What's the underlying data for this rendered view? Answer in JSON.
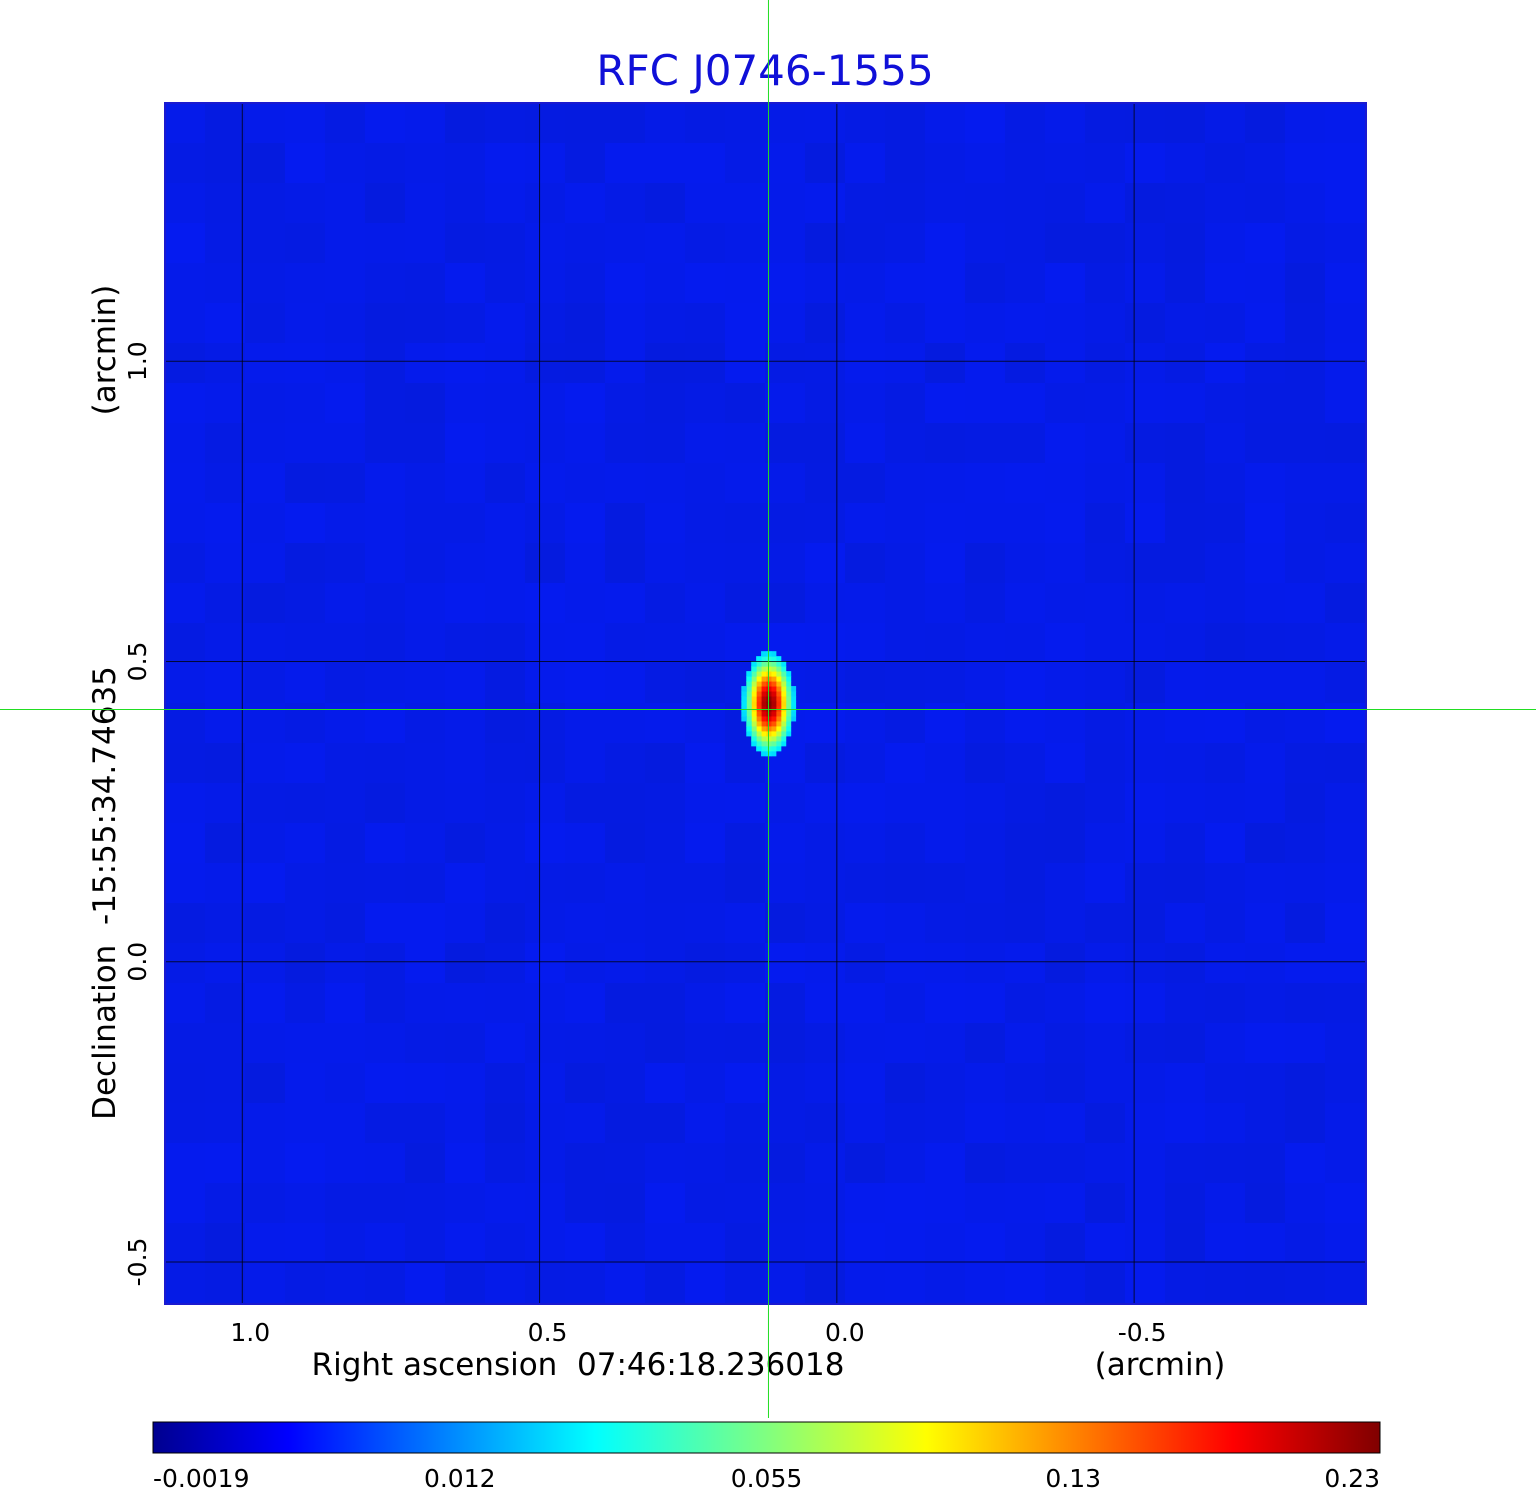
{
  "chart_data": {
    "type": "heatmap",
    "title": "RFC J0746-1555",
    "xlabel": "Right ascension  07:46:18.236018",
    "xunit": "(arcmin)",
    "ylabel": "Declination  -15:55:34.74635",
    "yunit": "(arcmin)",
    "xlim": [
      1.13,
      -0.89
    ],
    "ylim": [
      -0.57,
      1.43
    ],
    "x_ticks": [
      {
        "value": 1.0,
        "label": "1.0"
      },
      {
        "value": 0.5,
        "label": "0.5"
      },
      {
        "value": 0.0,
        "label": "0.0"
      },
      {
        "value": -0.5,
        "label": "-0.5"
      }
    ],
    "y_ticks": [
      {
        "value": 1.0,
        "label": "1.0"
      },
      {
        "value": 0.5,
        "label": "0.5"
      },
      {
        "value": 0.0,
        "label": "0.0"
      },
      {
        "value": -0.5,
        "label": "-0.5"
      }
    ],
    "grid": true,
    "crosshair": {
      "x": 0.115,
      "y": 0.42,
      "color": "#22dd22"
    },
    "source": {
      "x": 0.115,
      "y": 0.43,
      "peak": 0.23,
      "sigma_x": 0.018,
      "sigma_y": 0.036
    },
    "colormap": "jet",
    "colorbar": {
      "position": "bottom",
      "ticks": [
        {
          "value": -0.0019,
          "label": "-0.0019"
        },
        {
          "value": 0.012,
          "label": "0.012"
        },
        {
          "value": 0.055,
          "label": "0.055"
        },
        {
          "value": 0.13,
          "label": "0.13"
        },
        {
          "value": 0.23,
          "label": "0.23"
        }
      ]
    }
  }
}
